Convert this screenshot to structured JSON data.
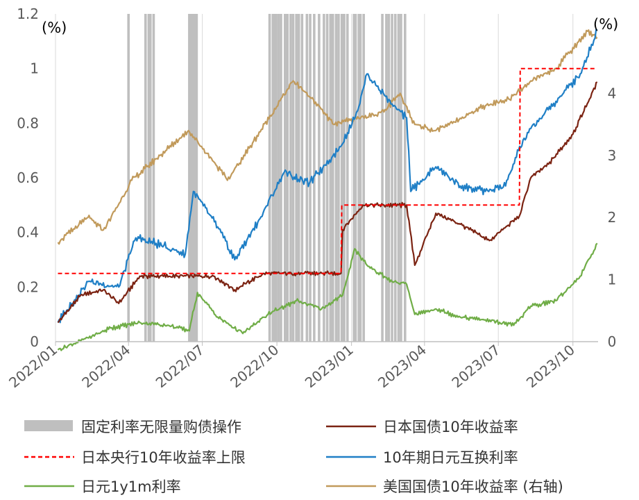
{
  "chart_data": {
    "type": "line",
    "y_left_unit": "(%)",
    "y_right_unit": "(%)",
    "y_left_range": [
      0,
      1.2
    ],
    "y_left_ticks": [
      "0",
      "0.2",
      "0.4",
      "0.6",
      "0.8",
      "1",
      "1.2"
    ],
    "y_right_range": [
      0,
      5
    ],
    "y_right_ticks": [
      "0",
      "1",
      "2",
      "3",
      "4"
    ],
    "x_range": [
      "2022-01",
      "2023-11"
    ],
    "x_ticks": [
      "2022/01",
      "2022/04",
      "2022/07",
      "2022/10",
      "2023/01",
      "2023/04",
      "2023/07",
      "2023/10"
    ],
    "legend": [
      "固定利率无限量购债操作",
      "日本国债10年收益率",
      "日本央行10年收益率上限",
      "10年期日元互换利率",
      "日元1y1m利率",
      "美国国债10年收益率 (右轴)"
    ],
    "colors": {
      "operations": "#bfbfbf",
      "jgb10y": "#7b2312",
      "boj_cap": "#ff0000",
      "swap10y": "#1f7fc6",
      "y1y1m": "#70ad47",
      "ust10y": "#c19a5b"
    },
    "operation_dates": [
      "2022-04-01",
      "2022-04-22",
      "2022-04-26",
      "2022-04-28",
      "2022-05-02",
      "2022-06-15",
      "2022-06-17",
      "2022-06-20",
      "2022-06-22",
      "2022-06-24",
      "2022-09-22",
      "2022-09-26",
      "2022-09-28",
      "2022-09-30",
      "2022-10-03",
      "2022-10-06",
      "2022-10-11",
      "2022-10-14",
      "2022-10-18",
      "2022-10-21",
      "2022-10-25",
      "2022-10-28",
      "2022-11-01",
      "2022-11-07",
      "2022-11-11",
      "2022-11-16",
      "2022-11-22",
      "2022-11-28",
      "2022-12-02",
      "2022-12-06",
      "2022-12-09",
      "2022-12-13",
      "2022-12-16",
      "2022-12-20",
      "2022-12-21",
      "2022-12-23",
      "2022-12-27",
      "2023-01-04",
      "2023-01-06",
      "2023-01-10",
      "2023-01-12",
      "2023-01-16",
      "2023-02-08",
      "2023-02-13",
      "2023-02-16",
      "2023-02-20",
      "2023-02-24",
      "2023-02-28",
      "2023-03-03",
      "2023-03-08"
    ],
    "series": [
      {
        "name": "日本国债10年收益率",
        "axis": "left",
        "x": [
          "2022-01-04",
          "2022-02-01",
          "2022-03-01",
          "2022-03-20",
          "2022-04-15",
          "2022-06-01",
          "2022-07-15",
          "2022-08-10",
          "2022-09-15",
          "2022-11-01",
          "2022-12-19",
          "2022-12-21",
          "2023-01-15",
          "2023-02-10",
          "2023-03-10",
          "2023-03-20",
          "2023-04-15",
          "2023-05-15",
          "2023-06-20",
          "2023-07-27",
          "2023-08-10",
          "2023-09-01",
          "2023-10-01",
          "2023-10-31"
        ],
        "values": [
          0.07,
          0.17,
          0.19,
          0.14,
          0.24,
          0.24,
          0.24,
          0.19,
          0.25,
          0.25,
          0.25,
          0.41,
          0.5,
          0.5,
          0.5,
          0.28,
          0.47,
          0.43,
          0.37,
          0.46,
          0.6,
          0.65,
          0.76,
          0.95
        ]
      },
      {
        "name": "日本央行10年收益率上限",
        "axis": "left",
        "x": [
          "2022-01-04",
          "2022-12-19",
          "2022-12-20",
          "2023-07-27",
          "2023-07-28",
          "2023-10-31"
        ],
        "values": [
          0.25,
          0.25,
          0.5,
          0.5,
          1.0,
          1.0
        ]
      },
      {
        "name": "10年期日元互换利率",
        "axis": "left",
        "x": [
          "2022-01-04",
          "2022-02-10",
          "2022-03-20",
          "2022-04-10",
          "2022-05-05",
          "2022-06-10",
          "2022-06-20",
          "2022-07-20",
          "2022-08-10",
          "2022-09-10",
          "2022-10-10",
          "2022-11-10",
          "2022-12-20",
          "2023-01-10",
          "2023-01-20",
          "2023-02-20",
          "2023-03-10",
          "2023-03-15",
          "2023-04-15",
          "2023-05-15",
          "2023-06-15",
          "2023-07-10",
          "2023-07-26",
          "2023-08-10",
          "2023-09-10",
          "2023-10-10",
          "2023-10-31"
        ],
        "values": [
          0.07,
          0.22,
          0.2,
          0.38,
          0.36,
          0.32,
          0.55,
          0.42,
          0.3,
          0.45,
          0.62,
          0.58,
          0.72,
          0.86,
          0.98,
          0.87,
          0.82,
          0.55,
          0.64,
          0.57,
          0.55,
          0.57,
          0.7,
          0.78,
          0.88,
          0.98,
          1.14
        ]
      },
      {
        "name": "日元1y1m利率",
        "axis": "left",
        "x": [
          "2022-01-04",
          "2022-02-15",
          "2022-03-10",
          "2022-04-15",
          "2022-05-20",
          "2022-06-15",
          "2022-06-25",
          "2022-07-20",
          "2022-08-20",
          "2022-09-20",
          "2022-10-25",
          "2022-11-25",
          "2022-12-21",
          "2023-01-05",
          "2023-01-20",
          "2023-02-20",
          "2023-03-10",
          "2023-03-20",
          "2023-04-15",
          "2023-05-15",
          "2023-06-15",
          "2023-07-20",
          "2023-08-10",
          "2023-09-10",
          "2023-10-10",
          "2023-10-31"
        ],
        "values": [
          -0.03,
          0.02,
          0.05,
          0.07,
          0.06,
          0.04,
          0.18,
          0.09,
          0.03,
          0.1,
          0.15,
          0.12,
          0.17,
          0.34,
          0.28,
          0.22,
          0.21,
          0.1,
          0.12,
          0.09,
          0.08,
          0.06,
          0.13,
          0.15,
          0.24,
          0.36
        ]
      },
      {
        "name": "美国国债10年收益率 (右轴)",
        "axis": "right",
        "x": [
          "2022-01-04",
          "2022-02-10",
          "2022-03-01",
          "2022-03-15",
          "2022-04-05",
          "2022-05-10",
          "2022-06-14",
          "2022-07-15",
          "2022-08-01",
          "2022-09-01",
          "2022-10-21",
          "2022-11-15",
          "2022-12-10",
          "2023-01-10",
          "2023-02-10",
          "2023-03-02",
          "2023-03-20",
          "2023-04-15",
          "2023-05-15",
          "2023-06-15",
          "2023-07-15",
          "2023-08-10",
          "2023-09-10",
          "2023-10-19",
          "2023-10-31"
        ],
        "values": [
          1.6,
          2.0,
          1.8,
          2.1,
          2.6,
          3.0,
          3.4,
          2.9,
          2.6,
          3.2,
          4.2,
          3.9,
          3.5,
          3.6,
          3.7,
          4.0,
          3.5,
          3.4,
          3.6,
          3.8,
          3.9,
          4.2,
          4.4,
          5.0,
          4.9
        ]
      }
    ]
  }
}
